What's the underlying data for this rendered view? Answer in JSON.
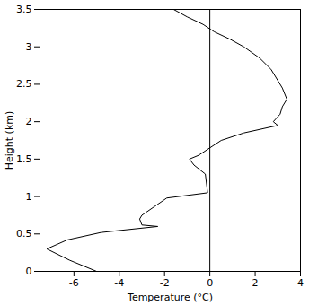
{
  "chart_data": {
    "type": "line",
    "xlabel": "Temperature (°C)",
    "ylabel": "Height (km)",
    "x": [
      -5.0,
      -6.2,
      -7.2,
      -6.3,
      -4.8,
      -2.3,
      -3.0,
      -3.1,
      -3.0,
      -1.9,
      -0.1,
      -0.2,
      -0.7,
      -0.9,
      -0.5,
      0.0,
      0.5,
      1.5,
      3.0,
      2.8,
      3.1,
      3.2,
      3.4,
      3.2,
      3.0,
      2.7,
      2.2,
      1.5,
      0.9,
      0.2,
      -0.3,
      -1.0,
      -1.6
    ],
    "values": [
      0.0,
      0.15,
      0.3,
      0.42,
      0.52,
      0.6,
      0.62,
      0.7,
      0.75,
      0.98,
      1.05,
      1.3,
      1.42,
      1.5,
      1.55,
      1.65,
      1.75,
      1.85,
      1.95,
      2.0,
      2.1,
      2.2,
      2.3,
      2.45,
      2.55,
      2.7,
      2.85,
      3.0,
      3.1,
      3.2,
      3.3,
      3.4,
      3.5
    ],
    "color": "#000000",
    "vline_x": 0,
    "xlim": [
      -7.5,
      4
    ],
    "xticks": [
      -6,
      -4,
      -2,
      0,
      2,
      4
    ],
    "ylim": [
      0,
      3.5
    ],
    "yticks": [
      0,
      0.5,
      1,
      1.5,
      2,
      2.5,
      3,
      3.5
    ],
    "grid": false
  }
}
